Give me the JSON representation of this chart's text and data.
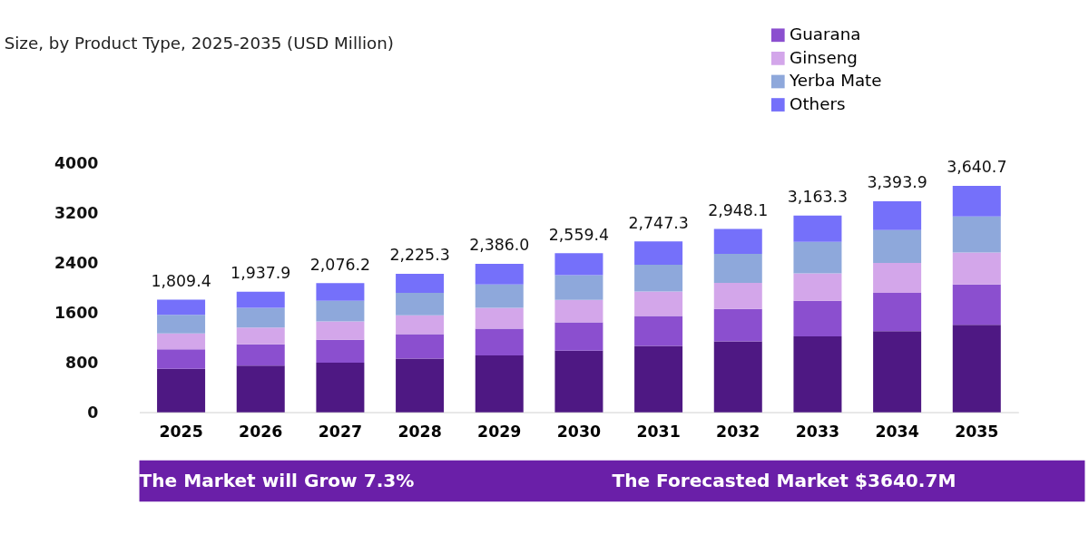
{
  "chart_data": {
    "type": "bar",
    "stacked": true,
    "subtitle": "Size, by Product Type, 2025-2035 (USD Million)",
    "categories": [
      "2025",
      "2026",
      "2027",
      "2028",
      "2029",
      "2030",
      "2031",
      "2032",
      "2033",
      "2034",
      "2035"
    ],
    "series": [
      {
        "color": "#4e1883",
        "values": [
          699,
          748,
          797,
          861,
          915,
          989,
          1068,
          1141,
          1220,
          1304,
          1407
        ]
      },
      {
        "name": "Guarana",
        "color": "#8b4fcf",
        "values": [
          314,
          344,
          369,
          394,
          428,
          457,
          482,
          522,
          571,
          615,
          650
        ]
      },
      {
        "name": "Ginseng",
        "color": "#d3a6ea",
        "values": [
          256,
          271,
          295,
          305,
          335,
          360,
          393,
          418,
          443,
          482,
          511
        ]
      },
      {
        "name": "Yerba Mate",
        "color": "#8ea8db",
        "values": [
          296,
          315,
          330,
          359,
          379,
          398,
          428,
          468,
          506,
          531,
          581
        ]
      },
      {
        "name": "Others",
        "color": "#7570fa",
        "values": [
          244.4,
          259.9,
          285.2,
          306.3,
          329.0,
          355.4,
          376.3,
          399.1,
          423.3,
          461.9,
          491.7
        ]
      }
    ],
    "totals": [
      "1,809.4",
      "1,937.9",
      "2,076.2",
      "2,225.3",
      "2,386.0",
      "2,559.4",
      "2,747.3",
      "2,948.1",
      "3,163.3",
      "3,393.9",
      "3,640.7"
    ],
    "ylim": [
      0,
      4000
    ],
    "yticks": [
      0,
      800,
      1600,
      2400,
      3200,
      4000
    ],
    "grid": false,
    "legend": "top right",
    "annotations": [
      "The Market will Grow 7.3%",
      "The Forecasted Market $3640.7M"
    ]
  }
}
